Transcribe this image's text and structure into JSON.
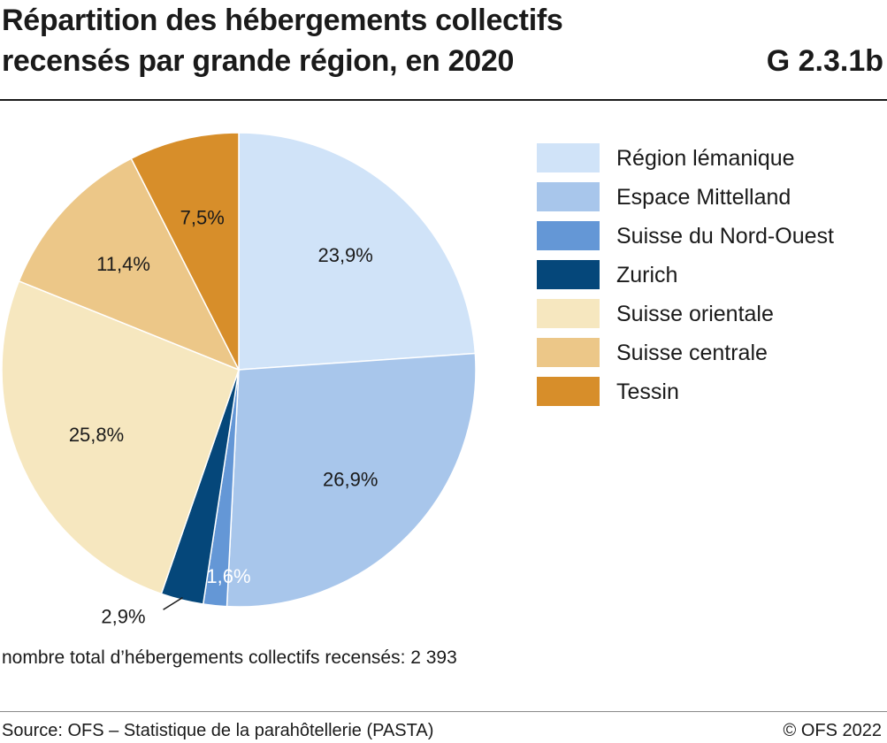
{
  "header": {
    "title_line1": "Répartition des hébergements collectifs",
    "title_line2": "recensés par grande région, en 2020",
    "code": "G 2.3.1b"
  },
  "chart_data": {
    "type": "pie",
    "slices": [
      {
        "name": "Région lémanique",
        "value": 23.9,
        "label": "23,9%",
        "color": "#d0e3f8",
        "label_color": "#1a1a1a"
      },
      {
        "name": "Espace Mittelland",
        "value": 26.9,
        "label": "26,9%",
        "color": "#a8c6eb",
        "label_color": "#1a1a1a"
      },
      {
        "name": "Suisse du Nord-Ouest",
        "value": 1.6,
        "label": "1,6%",
        "color": "#6497d6",
        "label_color": "#ffffff"
      },
      {
        "name": "Zurich",
        "value": 2.9,
        "label": "2,9%",
        "color": "#05477a",
        "label_color": "#1a1a1a"
      },
      {
        "name": "Suisse orientale",
        "value": 25.8,
        "label": "25,8%",
        "color": "#f6e7bf",
        "label_color": "#1a1a1a"
      },
      {
        "name": "Suisse centrale",
        "value": 11.4,
        "label": "11,4%",
        "color": "#ecc788",
        "label_color": "#1a1a1a"
      },
      {
        "name": "Tessin",
        "value": 7.5,
        "label": "7,5%",
        "color": "#d78e2a",
        "label_color": "#1a1a1a"
      }
    ],
    "start": "top",
    "direction": "clockwise",
    "legend_position": "right"
  },
  "footer": {
    "note": "nombre total d’hébergements collectifs recensés: 2 393",
    "source": "Source: OFS – Statistique de la parahôtellerie (PASTA)",
    "copyright": "© OFS 2022"
  }
}
